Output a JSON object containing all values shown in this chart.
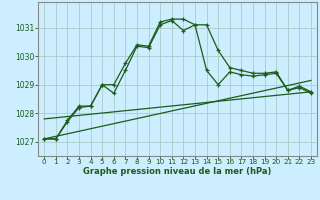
{
  "title": "Graphe pression niveau de la mer (hPa)",
  "bg_color": "#cceeff",
  "grid_color": "#aacccc",
  "line_color": "#1a5c1a",
  "ylim": [
    1026.5,
    1031.9
  ],
  "xlim": [
    -0.5,
    23.5
  ],
  "yticks": [
    1027,
    1028,
    1029,
    1030,
    1031
  ],
  "xticks": [
    0,
    1,
    2,
    3,
    4,
    5,
    6,
    7,
    8,
    9,
    10,
    11,
    12,
    13,
    14,
    15,
    16,
    17,
    18,
    19,
    20,
    21,
    22,
    23
  ],
  "series1": [
    1027.1,
    1027.1,
    1027.7,
    1028.2,
    1028.25,
    1029.0,
    1028.7,
    1029.5,
    1030.35,
    1030.3,
    1031.1,
    1031.25,
    1030.9,
    1031.1,
    1029.5,
    1029.0,
    1029.45,
    1029.35,
    1029.3,
    1029.35,
    1029.4,
    1028.8,
    1028.9,
    1028.7
  ],
  "series2": [
    1027.1,
    1027.1,
    1027.75,
    1028.25,
    1028.25,
    1029.0,
    1029.0,
    1029.75,
    1030.4,
    1030.35,
    1031.2,
    1031.3,
    1031.3,
    1031.1,
    1031.1,
    1030.2,
    1029.6,
    1029.5,
    1029.4,
    1029.4,
    1029.45,
    1028.8,
    1028.95,
    1028.75
  ],
  "series3_x": [
    0,
    23
  ],
  "series3_y": [
    1027.1,
    1029.15
  ],
  "series4_x": [
    0,
    23
  ],
  "series4_y": [
    1027.8,
    1028.75
  ]
}
